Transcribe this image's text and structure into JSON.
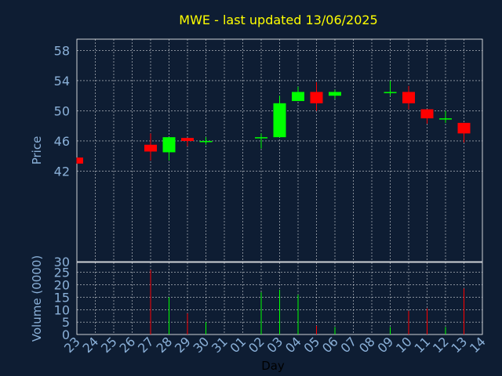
{
  "chart_data": {
    "type": "candlestick",
    "title": "MWE - last updated 13/06/2025",
    "xlabel": "Day",
    "colors": {
      "background": "#0e1d33",
      "up": "#00ff00",
      "down": "#ff0000",
      "axis_text": "#8ab0d8",
      "title": "#ffff00",
      "grid": "#ffffff"
    },
    "grid": true,
    "x_ticks": [
      "23",
      "24",
      "25",
      "26",
      "27",
      "28",
      "29",
      "30",
      "31",
      "01",
      "02",
      "03",
      "04",
      "05",
      "06",
      "07",
      "08",
      "09",
      "10",
      "11",
      "12",
      "13",
      "14"
    ],
    "price": {
      "ylabel": "Price",
      "ylim": [
        30,
        59.5
      ],
      "ticks": [
        30,
        42,
        46,
        50,
        54,
        58
      ],
      "candles": [
        {
          "day": "23",
          "open": 43.8,
          "high": 43.8,
          "low": 43.0,
          "close": 43.0
        },
        {
          "day": "27",
          "open": 45.5,
          "high": 47.0,
          "low": 43.4,
          "close": 44.6
        },
        {
          "day": "28",
          "open": 44.5,
          "high": 46.5,
          "low": 43.4,
          "close": 46.5
        },
        {
          "day": "29",
          "open": 46.4,
          "high": 46.4,
          "low": 45.3,
          "close": 46.0
        },
        {
          "day": "30",
          "open": 45.9,
          "high": 46.5,
          "low": 45.5,
          "close": 46.0
        },
        {
          "day": "02",
          "open": 46.5,
          "high": 47.0,
          "low": 45.0,
          "close": 46.5
        },
        {
          "day": "03",
          "open": 46.5,
          "high": 52.0,
          "low": 46.5,
          "close": 51.0
        },
        {
          "day": "04",
          "open": 51.3,
          "high": 53.2,
          "low": 51.3,
          "close": 52.5
        },
        {
          "day": "05",
          "open": 52.5,
          "high": 53.8,
          "low": 50.0,
          "close": 51.0
        },
        {
          "day": "06",
          "open": 52.0,
          "high": 52.8,
          "low": 51.6,
          "close": 52.5
        },
        {
          "day": "09",
          "open": 52.4,
          "high": 54.0,
          "low": 52.0,
          "close": 52.5
        },
        {
          "day": "10",
          "open": 52.5,
          "high": 53.3,
          "low": 50.2,
          "close": 51.0
        },
        {
          "day": "11",
          "open": 50.2,
          "high": 50.2,
          "low": 48.3,
          "close": 49.0
        },
        {
          "day": "12",
          "open": 48.9,
          "high": 50.0,
          "low": 48.4,
          "close": 49.0
        },
        {
          "day": "13",
          "open": 48.4,
          "high": 48.4,
          "low": 45.8,
          "close": 47.0
        }
      ]
    },
    "volume": {
      "ylabel": "Volume (0000)",
      "ylim": [
        0,
        29
      ],
      "ticks": [
        0,
        5,
        10,
        15,
        20,
        25
      ],
      "bars": [
        {
          "day": "27",
          "value": 26,
          "dir": "down"
        },
        {
          "day": "28",
          "value": 15,
          "dir": "up"
        },
        {
          "day": "29",
          "value": 8.5,
          "dir": "down"
        },
        {
          "day": "30",
          "value": 5,
          "dir": "up"
        },
        {
          "day": "02",
          "value": 17,
          "dir": "up"
        },
        {
          "day": "03",
          "value": 18,
          "dir": "up"
        },
        {
          "day": "04",
          "value": 16,
          "dir": "up"
        },
        {
          "day": "05",
          "value": 3.5,
          "dir": "down"
        },
        {
          "day": "06",
          "value": 3,
          "dir": "up"
        },
        {
          "day": "09",
          "value": 3,
          "dir": "up"
        },
        {
          "day": "10",
          "value": 9.5,
          "dir": "down"
        },
        {
          "day": "11",
          "value": 10.5,
          "dir": "down"
        },
        {
          "day": "12",
          "value": 3,
          "dir": "up"
        },
        {
          "day": "13",
          "value": 18.5,
          "dir": "down"
        }
      ]
    }
  }
}
